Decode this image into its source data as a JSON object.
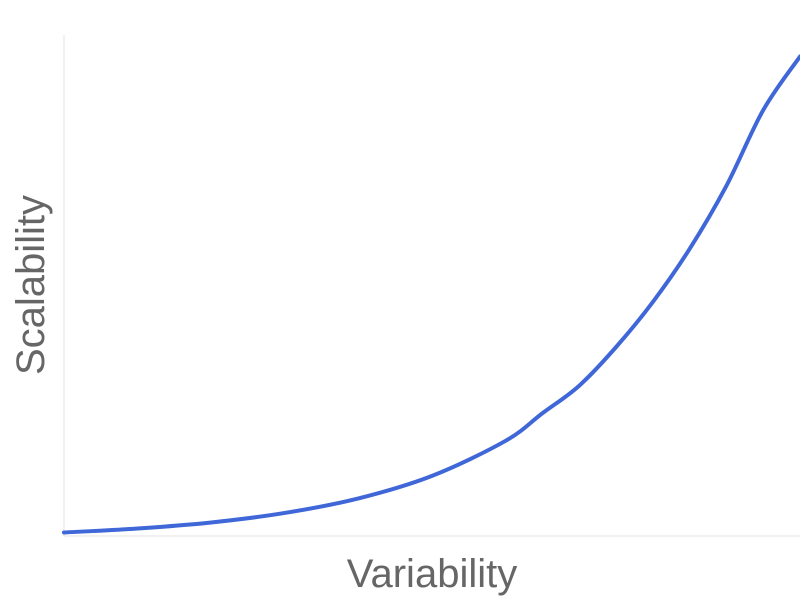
{
  "chart_data": {
    "type": "line",
    "title": "",
    "xlabel": "Variability",
    "ylabel": "Scalability",
    "xlim": [
      0,
      10
    ],
    "ylim": [
      0,
      10
    ],
    "grid": false,
    "legend": "none",
    "color": "#3f67d8",
    "series": [
      {
        "x": [
          0,
          1,
          2,
          3,
          4,
          5,
          6,
          6.5,
          7,
          7.5,
          8,
          8.5,
          9,
          9.5,
          10
        ],
        "values": [
          0.07,
          0.15,
          0.27,
          0.46,
          0.75,
          1.2,
          1.9,
          2.45,
          3.0,
          3.77,
          4.67,
          5.73,
          6.99,
          8.5,
          9.57
        ]
      }
    ]
  }
}
